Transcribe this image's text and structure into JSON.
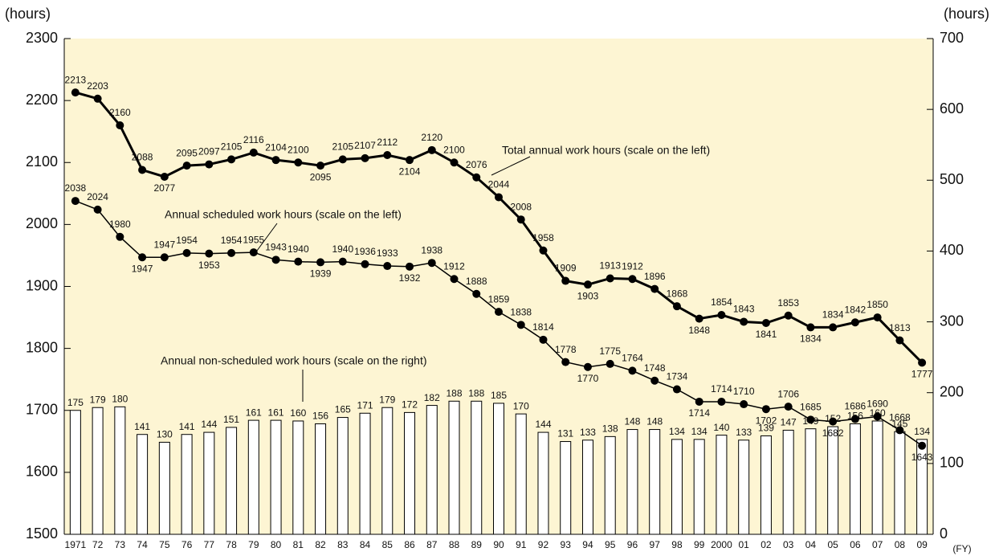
{
  "chart_data": {
    "type": "line_bar_dual",
    "y_label": "(hours)",
    "y2_label": "(hours)",
    "x_label": "(FY)",
    "categories": [
      "1971",
      "72",
      "73",
      "74",
      "75",
      "76",
      "77",
      "78",
      "79",
      "80",
      "81",
      "82",
      "83",
      "84",
      "85",
      "86",
      "87",
      "88",
      "89",
      "90",
      "91",
      "92",
      "93",
      "94",
      "95",
      "96",
      "97",
      "98",
      "99",
      "2000",
      "01",
      "02",
      "03",
      "04",
      "05",
      "06",
      "07",
      "08",
      "09"
    ],
    "ylim": [
      1500,
      2300
    ],
    "yticks": [
      1500,
      1600,
      1700,
      1800,
      1900,
      2000,
      2100,
      2200,
      2300
    ],
    "y2lim": [
      0,
      700
    ],
    "y2ticks": [
      0,
      100,
      200,
      300,
      400,
      500,
      600,
      700
    ],
    "series": [
      {
        "name": "Total annual work hours (scale on the left)",
        "type": "line",
        "color": "#000000",
        "width": 3,
        "values": [
          2213,
          2203,
          2160,
          2088,
          2077,
          2095,
          2097,
          2105,
          2116,
          2104,
          2100,
          2095,
          2105,
          2107,
          2112,
          2104,
          2120,
          2100,
          2076,
          2044,
          2008,
          1958,
          1909,
          1903,
          1913,
          1912,
          1896,
          1868,
          1848,
          1854,
          1843,
          1841,
          1853,
          1834,
          1834,
          1842,
          1850,
          1813,
          1777
        ]
      },
      {
        "name": "Annual scheduled work hours (scale on the left)",
        "type": "line",
        "color": "#000000",
        "width": 1.5,
        "values": [
          2038,
          2024,
          1980,
          1947,
          1947,
          1954,
          1953,
          1954,
          1955,
          1943,
          1940,
          1939,
          1940,
          1936,
          1933,
          1932,
          1938,
          1912,
          1888,
          1859,
          1838,
          1814,
          1778,
          1770,
          1775,
          1764,
          1748,
          1734,
          1714,
          1714,
          1710,
          1702,
          1706,
          1685,
          1682,
          1686,
          1690,
          1668,
          1643
        ]
      },
      {
        "name": "Annual non-scheduled work hours (scale on the right)",
        "type": "bar",
        "axis": "y2",
        "color": "#ffffff",
        "values": [
          175,
          179,
          180,
          141,
          130,
          141,
          144,
          151,
          161,
          161,
          160,
          156,
          165,
          171,
          179,
          172,
          182,
          188,
          188,
          185,
          170,
          144,
          131,
          133,
          138,
          148,
          148,
          134,
          134,
          140,
          133,
          139,
          147,
          149,
          152,
          156,
          160,
          145,
          134
        ]
      }
    ]
  }
}
